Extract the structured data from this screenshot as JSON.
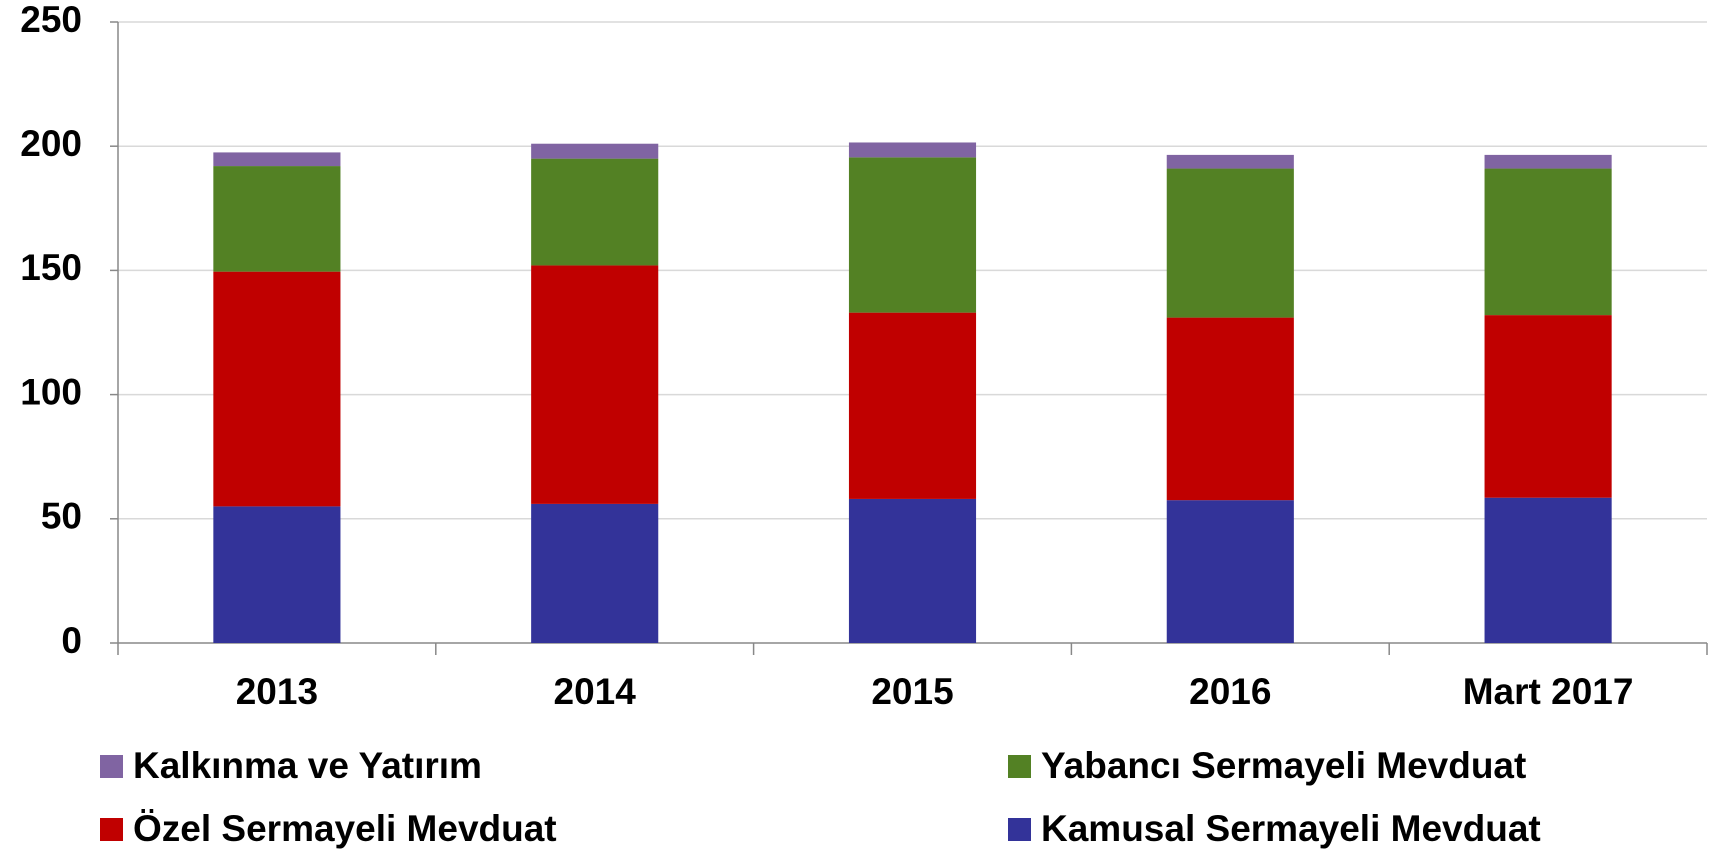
{
  "chart_data": {
    "type": "stacked_bar",
    "categories": [
      "2013",
      "2014",
      "2015",
      "2016",
      "Mart 2017"
    ],
    "series": [
      {
        "name": "Kamusal Sermayeli Mevduat",
        "color": "#333399",
        "values": [
          55,
          56,
          58,
          57.5,
          58.5
        ]
      },
      {
        "name": "Özel Sermayeli Mevduat",
        "color": "#c00000",
        "values": [
          94.5,
          96,
          75,
          73.5,
          73.5
        ]
      },
      {
        "name": "Yabancı Sermayeli Mevduat",
        "color": "#538124",
        "values": [
          42.5,
          43,
          62.5,
          60,
          59
        ]
      },
      {
        "name": "Kalkınma ve Yatırım",
        "color": "#8064a2",
        "values": [
          5.5,
          6,
          6,
          5.5,
          5.5
        ]
      }
    ],
    "ylim": [
      0,
      250
    ],
    "yticks": [
      0,
      50,
      100,
      150,
      200,
      250
    ],
    "grid": true
  }
}
